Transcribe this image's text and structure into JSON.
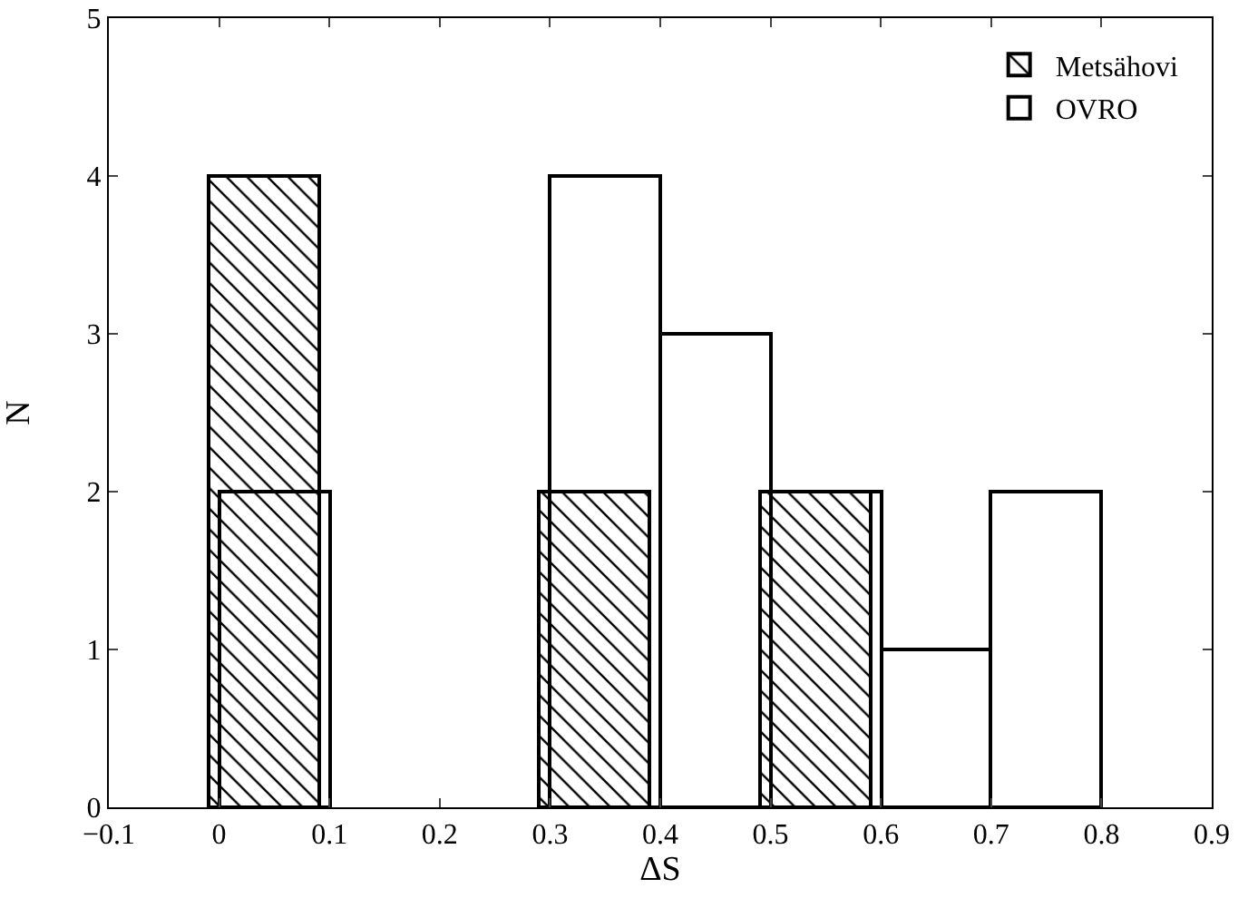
{
  "chart_data": {
    "type": "bar",
    "xlabel": "ΔS",
    "ylabel": "N",
    "xlim": [
      -0.1,
      0.9
    ],
    "ylim": [
      0,
      5
    ],
    "xticks": [
      {
        "value": -0.1,
        "label": "−0.1"
      },
      0,
      0.1,
      0.2,
      0.3,
      0.4,
      0.5,
      0.6,
      0.7,
      0.8,
      0.9
    ],
    "yticks": [
      0,
      1,
      2,
      3,
      4,
      5
    ],
    "grid": false,
    "legend": "top right",
    "series": [
      {
        "name": "Metsähovi",
        "color": "#000000",
        "x": [
          0.04,
          0.34,
          0.54
        ],
        "values": [
          4,
          2,
          2
        ]
      },
      {
        "name": "OVRO",
        "color": "#000000",
        "x": [
          0.05,
          0.35,
          0.45,
          0.55,
          0.65,
          0.75
        ],
        "values": [
          2,
          4,
          3,
          2,
          1,
          2
        ]
      }
    ]
  }
}
